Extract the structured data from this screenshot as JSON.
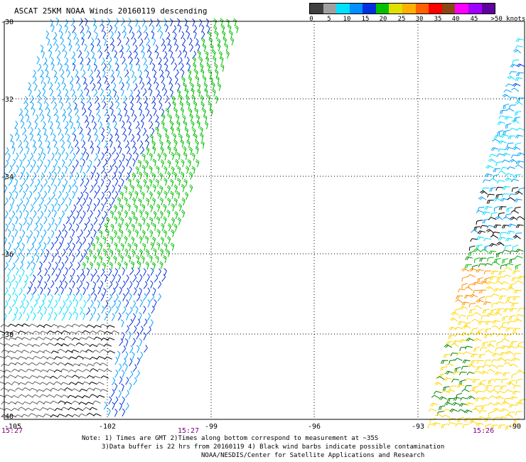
{
  "title": "ASCAT 25KM NOAA Winds 20160119 descending",
  "legend": {
    "colors": [
      "#404040",
      "#a0a0a0",
      "#00e0ff",
      "#0090ff",
      "#0030e0",
      "#00c000",
      "#e0e000",
      "#ffb000",
      "#ff6000",
      "#ff0000",
      "#8b4513",
      "#ff00ff",
      "#a000ff",
      "#6000a0"
    ],
    "labels": [
      "0",
      "5",
      "10",
      "15",
      "20",
      "25",
      "30",
      "35",
      "40",
      "45",
      ">50 knots"
    ]
  },
  "axes": {
    "lat_labels": [
      "-30",
      "-32",
      "-34",
      "-36",
      "-38",
      "-40"
    ],
    "lon_labels": [
      "-105",
      "-102",
      "-99",
      "-96",
      "-93",
      "-90"
    ]
  },
  "times": [
    "15:27",
    "15:27",
    "15:26"
  ],
  "notes": {
    "line1": "Note: 1) Times are GMT 2)Times along bottom correspond to measurement at ~35S",
    "line2": "3)Data buffer is 22 hrs from 20160119 4) Black wind barbs indicate possible contamination",
    "line3": "NOAA/NESDIS/Center for Satellite Applications and Research"
  }
}
